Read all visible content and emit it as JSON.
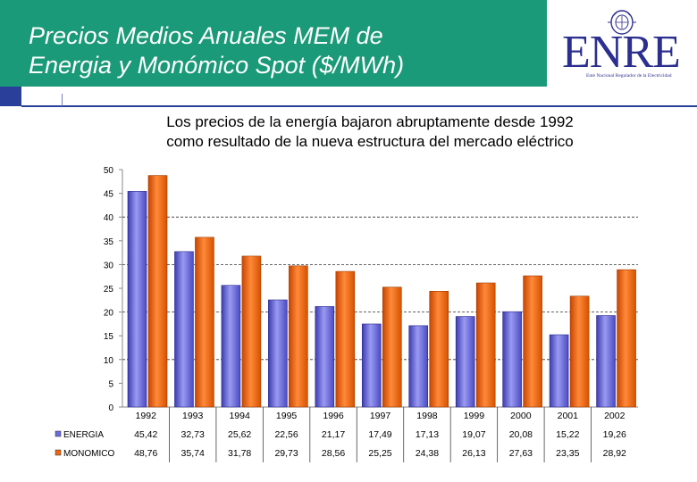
{
  "header": {
    "title_line1": "Precios Medios Anuales MEM de",
    "title_line2": "Energia y Monómico Spot ($/MWh)",
    "logo_text": "ENRE",
    "logo_subtext": "Ente Nacional Regulador de la Electricidad",
    "colors": {
      "band": "#1a9a78",
      "accent": "#2a3f9a",
      "logo": "#2c2f8f"
    }
  },
  "subtitle": {
    "line1": "Los precios de la energía bajaron abruptamente desde 1992",
    "line2": "como resultado de la nueva estructura del mercado eléctrico"
  },
  "chart_data": {
    "type": "bar",
    "title": "",
    "xlabel": "",
    "ylabel": "",
    "ylim": [
      0,
      50
    ],
    "yticks": [
      "0",
      "5",
      "10",
      "15",
      "20",
      "25",
      "30",
      "35",
      "40",
      "45",
      "50"
    ],
    "categories": [
      "1992",
      "1993",
      "1994",
      "1995",
      "1996",
      "1997",
      "1998",
      "1999",
      "2000",
      "2001",
      "2002"
    ],
    "series": [
      {
        "name": "ENERGIA",
        "color": "#6b6bdc",
        "values": [
          45.42,
          32.73,
          25.62,
          22.56,
          21.17,
          17.49,
          17.13,
          19.07,
          20.08,
          15.22,
          19.26
        ],
        "labels": [
          "45,42",
          "32,73",
          "25,62",
          "22,56",
          "21,17",
          "17,49",
          "17,13",
          "19,07",
          "20,08",
          "15,22",
          "19,26"
        ]
      },
      {
        "name": "MONOMICO",
        "color": "#f0640f",
        "values": [
          48.76,
          35.74,
          31.78,
          29.73,
          28.56,
          25.25,
          24.38,
          26.13,
          27.63,
          23.35,
          28.92
        ],
        "labels": [
          "48,76",
          "35,74",
          "31,78",
          "29,73",
          "28,56",
          "25,25",
          "24,38",
          "26,13",
          "27,63",
          "23,35",
          "28,92"
        ]
      }
    ],
    "grid": "dashed horizontal at 10, 20, 30, 40",
    "legend": "data table below chart"
  }
}
